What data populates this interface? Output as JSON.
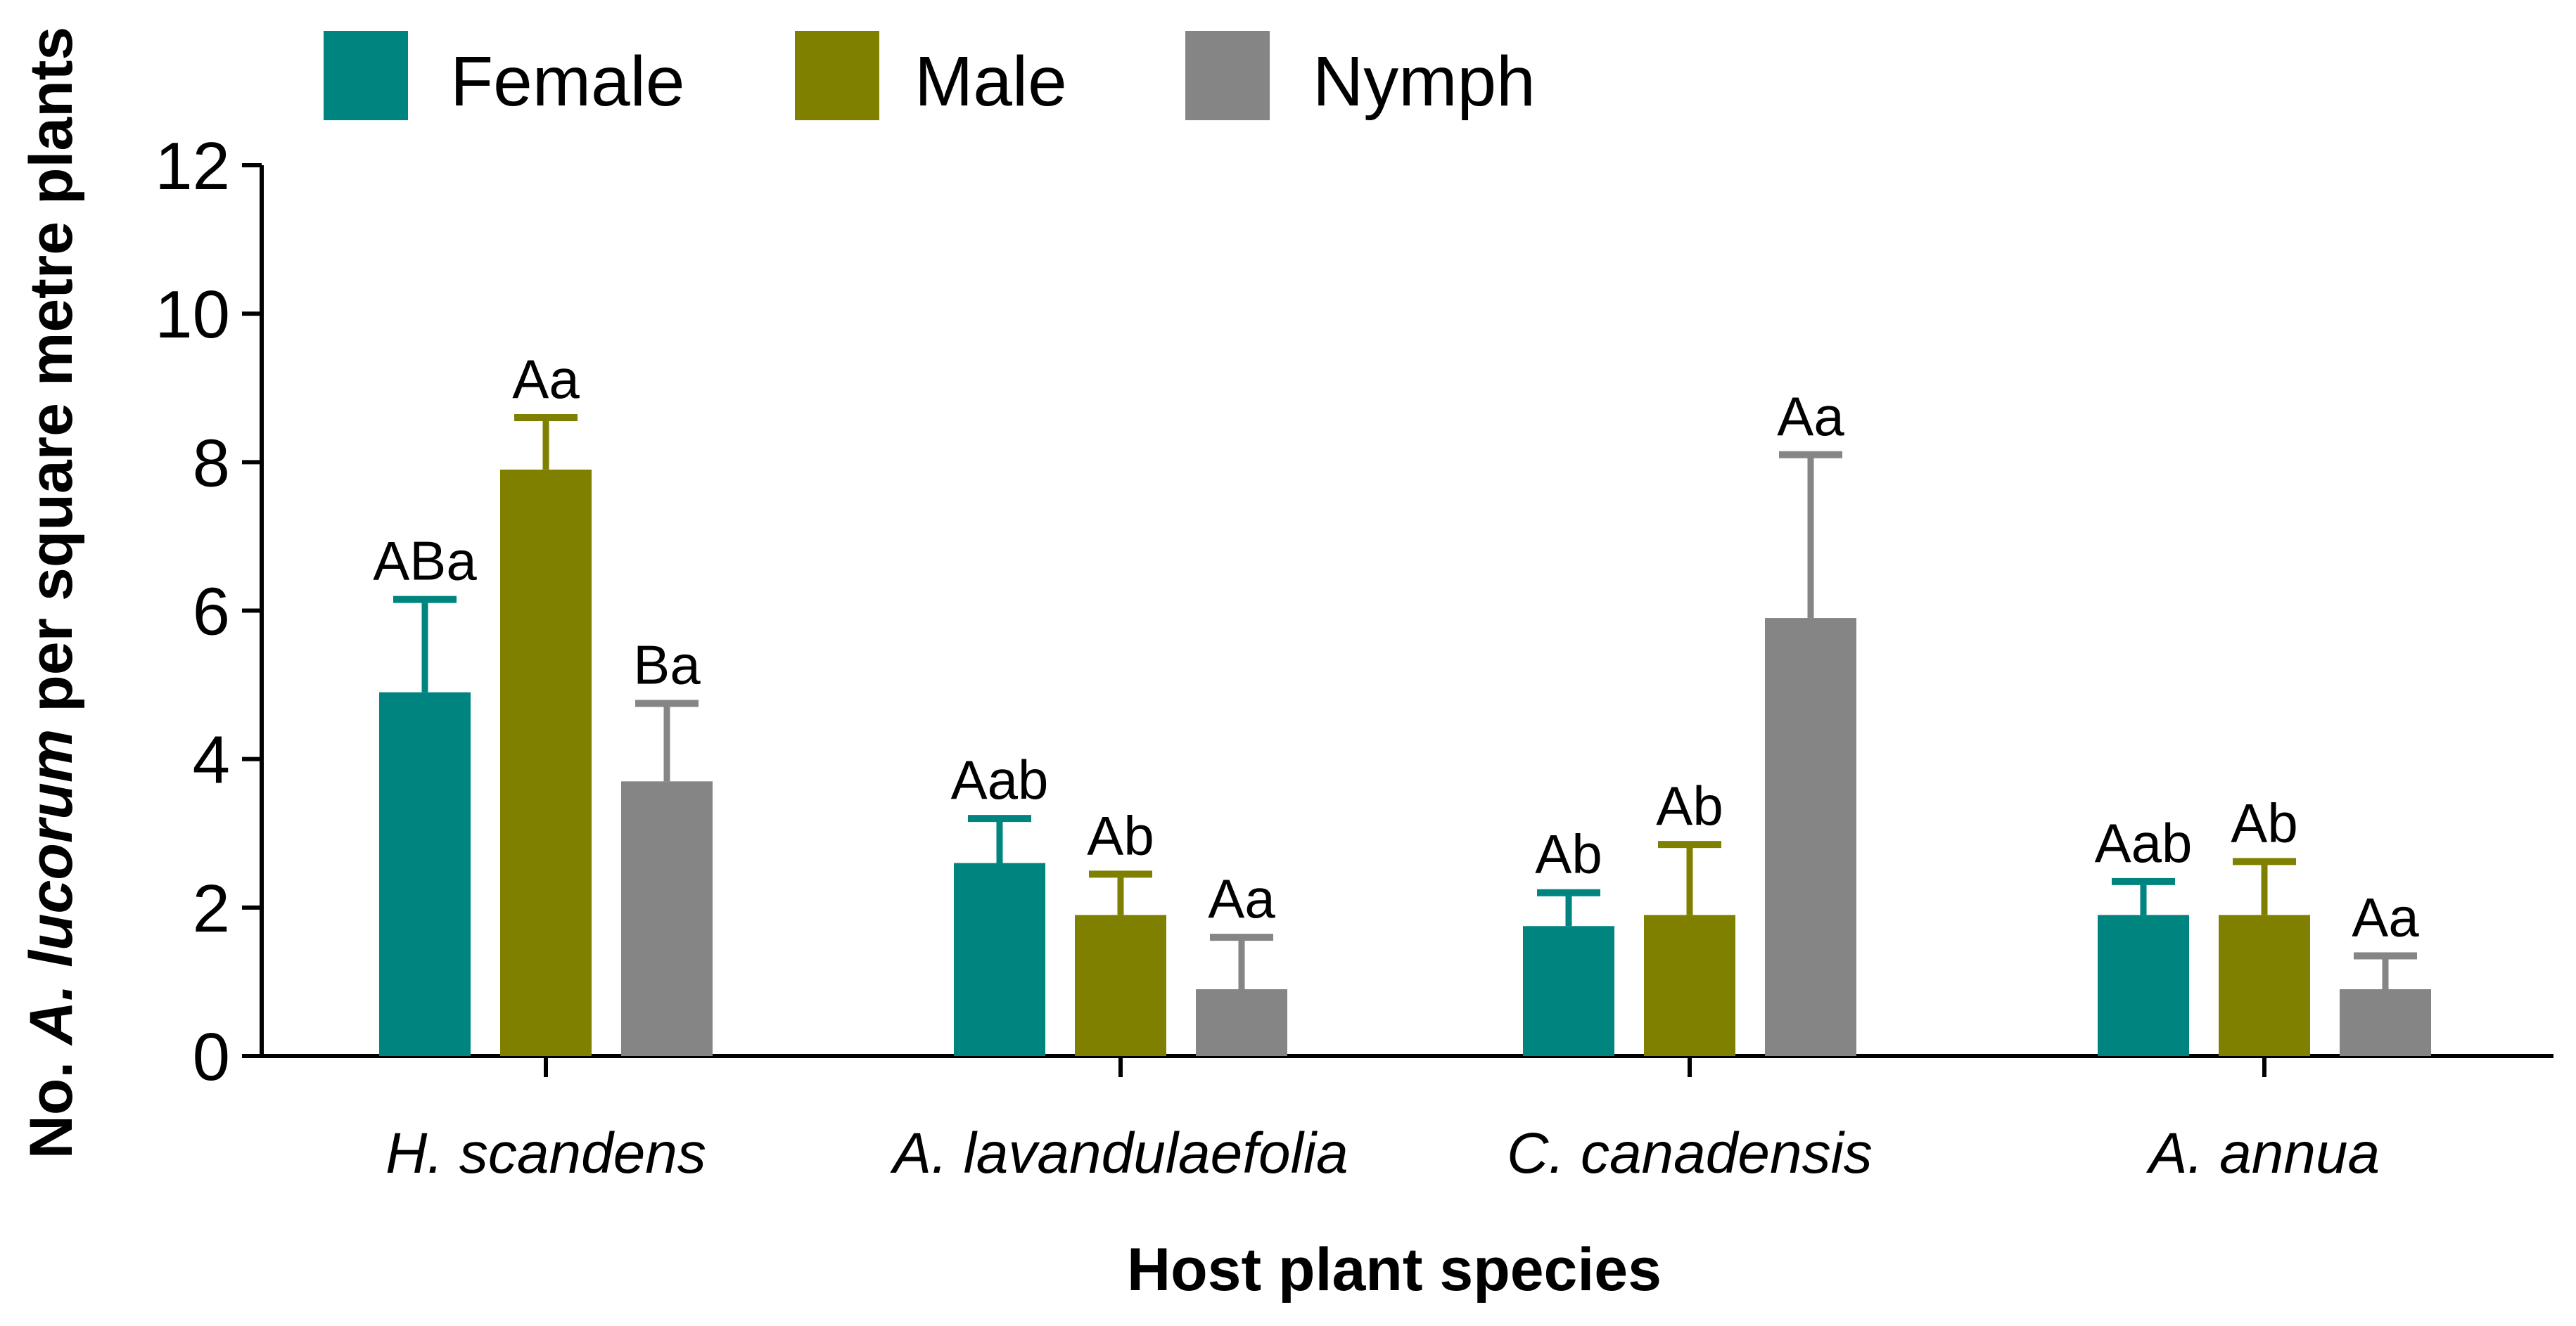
{
  "chart_data": {
    "type": "bar",
    "title": "",
    "xlabel": "Host plant species",
    "ylabel": {
      "pre": "No. ",
      "italic": "A. lucorum",
      "post": " per square metre plants"
    },
    "ylim": [
      0,
      12
    ],
    "yticks": [
      "0",
      "2",
      "4",
      "6",
      "8",
      "10",
      "12"
    ],
    "legend_position": "top-left",
    "categories": [
      "H. scandens",
      "A. lavandulaefolia",
      "C. canadensis",
      "A. annua"
    ],
    "series": [
      {
        "name": "Female",
        "color": "#00847f",
        "values": [
          4.9,
          2.6,
          1.75,
          1.9
        ],
        "errors": [
          1.25,
          0.6,
          0.45,
          0.45
        ],
        "labels": [
          "ABa",
          "Aab",
          "Ab",
          "Aab"
        ]
      },
      {
        "name": "Male",
        "color": "#808000",
        "values": [
          7.9,
          1.9,
          1.9,
          1.9
        ],
        "errors": [
          0.7,
          0.55,
          0.95,
          0.72
        ],
        "labels": [
          "Aa",
          "Ab",
          "Ab",
          "Ab"
        ]
      },
      {
        "name": "Nymph",
        "color": "#858585",
        "values": [
          3.7,
          0.9,
          5.9,
          0.9
        ],
        "errors": [
          1.05,
          0.7,
          2.2,
          0.45
        ],
        "labels": [
          "Ba",
          "Aa",
          "Aa",
          "Aa"
        ]
      }
    ]
  }
}
